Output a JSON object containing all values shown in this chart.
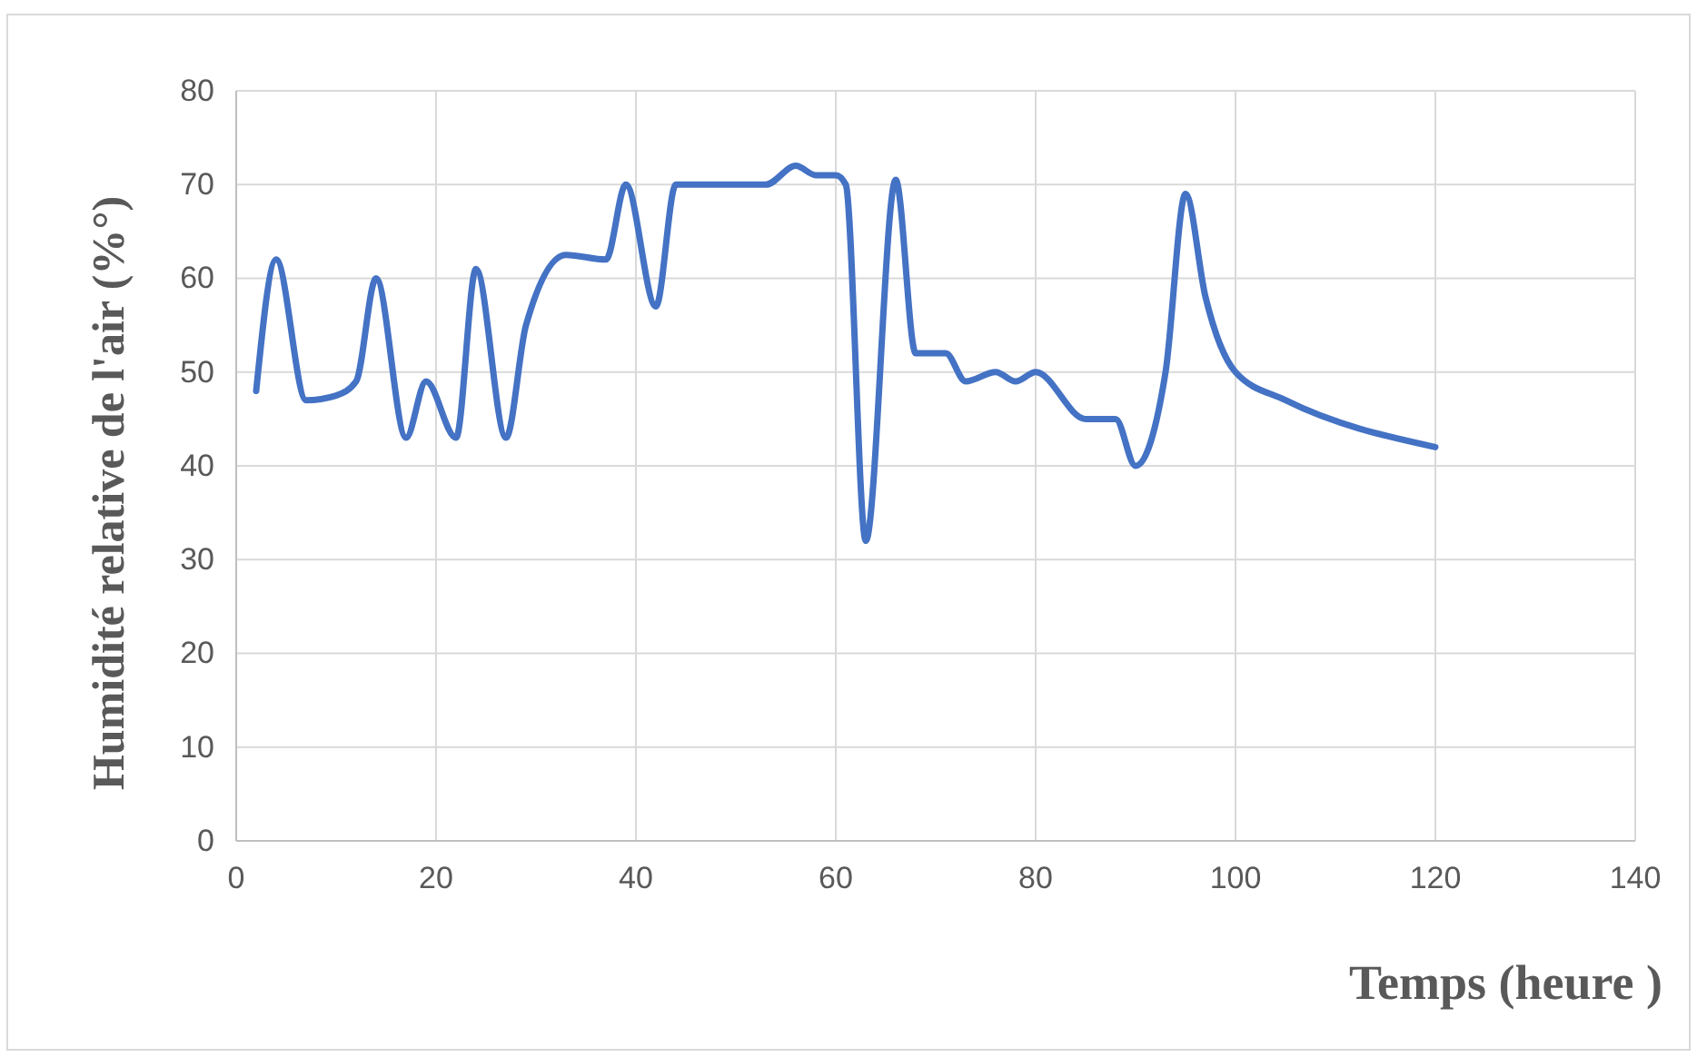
{
  "chart_data": {
    "type": "line",
    "xlabel": "Temps (heure )",
    "ylabel": "Humidité relative de l'air (%°)",
    "x": [
      2,
      4,
      7,
      10,
      12,
      14,
      17,
      19,
      22,
      24,
      27,
      29,
      33,
      37,
      39,
      42,
      44,
      46,
      50,
      53,
      56,
      58,
      60,
      61,
      63,
      66,
      68,
      71,
      73,
      76,
      78,
      80,
      85,
      88,
      90,
      93,
      95,
      97,
      100,
      105,
      120
    ],
    "series": [
      {
        "color": "#4472c4",
        "values": [
          48,
          62,
          47,
          47.5,
          49,
          60,
          43,
          49,
          43,
          61,
          43,
          55,
          62.5,
          62,
          70,
          57,
          70,
          70,
          70,
          70,
          72,
          71,
          71,
          70,
          32,
          70.5,
          52,
          52,
          49,
          50,
          49,
          50,
          45,
          45,
          40,
          50,
          69,
          58,
          50,
          47,
          42
        ]
      }
    ],
    "xlim": [
      0,
      140
    ],
    "xticks": [
      0,
      20,
      40,
      60,
      80,
      100,
      120,
      140
    ],
    "ylim": [
      0,
      80
    ],
    "yticks": [
      0,
      10,
      20,
      30,
      40,
      50,
      60,
      70,
      80
    ],
    "grid": true,
    "marker": "none",
    "line_style": "solid"
  }
}
